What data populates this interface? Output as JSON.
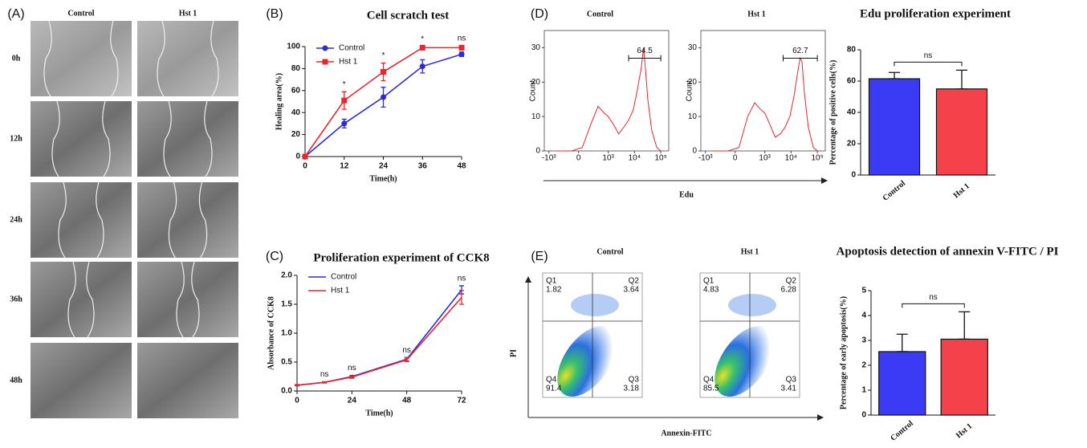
{
  "image_grid": {
    "panel": "(A)",
    "columns": [
      "Control",
      "Hst 1"
    ],
    "rows": [
      "0h",
      "12h",
      "24h",
      "36h",
      "48h"
    ]
  },
  "chart_data": [
    {
      "panel": "(B)",
      "type": "line",
      "title": "Cell scratch test",
      "x_label": "Time(h)",
      "y_label": "Healing area(%)",
      "x": [
        0,
        12,
        24,
        36,
        48
      ],
      "xlim": [
        0,
        48
      ],
      "xticks": [
        0,
        12,
        24,
        36,
        48
      ],
      "ylim": [
        0,
        100
      ],
      "yticks": [
        0,
        20,
        40,
        60,
        80,
        100
      ],
      "legend": "upper left",
      "series": [
        {
          "name": "Control",
          "color": "#2b2bd9",
          "marker": "circle",
          "values": [
            0,
            30,
            54,
            82,
            93
          ],
          "errors": [
            0,
            4,
            9,
            6,
            2
          ]
        },
        {
          "name": "Hst 1",
          "color": "#e8262c",
          "marker": "square",
          "values": [
            0,
            51,
            77,
            99,
            99
          ],
          "errors": [
            0,
            8,
            8,
            1,
            2
          ]
        }
      ],
      "annotations": [
        {
          "x": 12,
          "text": "*"
        },
        {
          "x": 24,
          "text": "*"
        },
        {
          "x": 36,
          "text": "*"
        },
        {
          "x": 48,
          "text": "ns"
        }
      ]
    },
    {
      "panel": "(C)",
      "type": "line",
      "title": "Proliferation experiment of CCK8",
      "x_label": "Time(h)",
      "y_label": "Absorbance of CCK8",
      "x": [
        0,
        12,
        24,
        48,
        72
      ],
      "xlim": [
        0,
        72
      ],
      "xticks": [
        0,
        24,
        48,
        72
      ],
      "ylim": [
        0,
        2
      ],
      "yticks": [
        {
          "value": 0,
          "label": "0.0"
        },
        {
          "value": 0.5,
          "label": "0.5"
        },
        {
          "value": 1,
          "label": "1.0"
        },
        {
          "value": 1.5,
          "label": "1.5"
        },
        {
          "value": 2,
          "label": "2.0"
        }
      ],
      "legend": "upper left",
      "series": [
        {
          "name": "Control",
          "color": "#2b2bd9",
          "marker": "none",
          "values": [
            0.1,
            0.15,
            0.25,
            0.55,
            1.75
          ],
          "errors": [
            0.01,
            0.01,
            0.02,
            0.03,
            0.07
          ]
        },
        {
          "name": "Hst 1",
          "color": "#e8262c",
          "marker": "none",
          "values": [
            0.1,
            0.15,
            0.24,
            0.54,
            1.62
          ],
          "errors": [
            0.01,
            0.01,
            0.02,
            0.03,
            0.12
          ]
        }
      ],
      "annotations": [
        {
          "x": 12,
          "text": "ns"
        },
        {
          "x": 24,
          "text": "ns"
        },
        {
          "x": 48,
          "text": "ns"
        },
        {
          "x": 72,
          "text": "ns"
        }
      ]
    },
    {
      "panel": "(D)",
      "type": "flow_histogram",
      "x_label": "Edu",
      "y_label": "Count",
      "xscale": "biexponential",
      "xlim": [
        -1500,
        200000
      ],
      "xticks": [
        {
          "value": -1000,
          "label": "-10³"
        },
        0,
        {
          "value": 1000,
          "label": "10³"
        },
        {
          "value": 10000,
          "label": "10⁴"
        },
        {
          "value": 100000,
          "label": "10⁵"
        }
      ],
      "ylim": [
        0,
        35
      ],
      "yticks": [
        0,
        10,
        20,
        30
      ],
      "color": "#e8262c",
      "x": [
        -500,
        -100,
        50,
        200,
        400,
        700,
        1000,
        1500,
        2500,
        4000,
        6000,
        9000,
        13000,
        18000,
        22000,
        26000,
        32000,
        45000,
        70000,
        100000
      ],
      "plots": [
        {
          "title": "Control",
          "values": [
            0,
            0,
            1,
            8,
            13,
            11,
            10,
            8,
            5,
            7,
            9,
            12,
            18,
            24,
            30,
            24,
            15,
            6,
            1,
            0
          ],
          "gate": {
            "value": 64.5,
            "range": [
              6000,
              100000
            ]
          }
        },
        {
          "title": "Hst 1",
          "values": [
            0,
            0,
            1,
            10,
            14,
            12,
            11,
            8,
            4,
            5,
            7,
            10,
            16,
            23,
            27,
            26,
            17,
            7,
            1,
            0
          ],
          "gate": {
            "value": 62.7,
            "range": [
              5000,
              100000
            ]
          }
        }
      ]
    },
    {
      "type": "bar",
      "title": "Edu proliferation experiment",
      "y_label": "Percentage of positive cells(%)",
      "categories": [
        "Control",
        "Hst 1"
      ],
      "values": [
        61.5,
        55
      ],
      "errors": [
        4,
        12
      ],
      "colors": [
        "#3b3bf5",
        "#f5414a"
      ],
      "ylim": [
        0,
        80
      ],
      "yticks": [
        0,
        20,
        40,
        60,
        80
      ],
      "annotation": "ns"
    },
    {
      "panel": "(E)",
      "type": "flow_quadrant",
      "x_label": "Annexin-FITC",
      "y_label": "PI",
      "plots": [
        {
          "title": "Control",
          "quadrants": [
            {
              "name": "Q1",
              "value": 1.82
            },
            {
              "name": "Q2",
              "value": 3.64
            },
            {
              "name": "Q4",
              "value": 91.4
            },
            {
              "name": "Q3",
              "value": 3.18
            }
          ]
        },
        {
          "title": "Hst 1",
          "quadrants": [
            {
              "name": "Q1",
              "value": 4.83
            },
            {
              "name": "Q2",
              "value": 6.28
            },
            {
              "name": "Q4",
              "value": 85.5
            },
            {
              "name": "Q3",
              "value": 3.41
            }
          ]
        }
      ]
    },
    {
      "type": "bar",
      "title": "Apoptosis detection of annexin V-FITC / PI",
      "y_label": "Percentage of early apoptosis(%)",
      "categories": [
        "Control",
        "Hst 1"
      ],
      "values": [
        2.55,
        3.05
      ],
      "errors": [
        0.7,
        1.1
      ],
      "colors": [
        "#3b3bf5",
        "#f5414a"
      ],
      "ylim": [
        0,
        5
      ],
      "yticks": [
        0,
        1,
        2,
        3,
        4,
        5
      ],
      "annotation": "ns"
    }
  ]
}
